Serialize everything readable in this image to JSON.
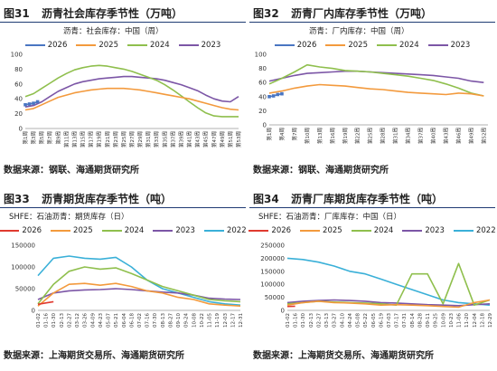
{
  "charts": [
    {
      "number": "图31",
      "title": "沥青社会库存季节性（万吨）",
      "subtitle": "沥青：社会库存：中国（周）",
      "source": "数据来源：钢联、海通期货研究所",
      "chart_data": {
        "type": "line",
        "ylim": [
          0,
          100
        ],
        "yticks": [
          0,
          20,
          40,
          60,
          80,
          100
        ],
        "xticks": [
          "第1周",
          "第3周",
          "第5周",
          "第7周",
          "第9周",
          "第11周",
          "第13周",
          "第15周",
          "第17周",
          "第19周",
          "第21周",
          "第23周",
          "第25周",
          "第27周",
          "第29周",
          "第31周",
          "第33周",
          "第35周",
          "第37周",
          "第39周",
          "第41周",
          "第43周",
          "第45周",
          "第47周",
          "第49周",
          "第51周",
          "第53周"
        ],
        "series": [
          {
            "name": "2026",
            "color": "#4a76c2",
            "marker": true,
            "x": [
              1,
              2,
              3,
              4
            ],
            "values": [
              32,
              33,
              34,
              36
            ]
          },
          {
            "name": "2025",
            "color": "#f39a3d",
            "x": [
              1,
              3,
              5,
              7,
              9,
              11,
              13,
              15,
              17,
              19,
              21,
              23,
              25,
              27,
              29,
              31,
              33,
              35,
              37,
              39,
              41,
              43,
              45,
              47,
              49,
              51,
              53
            ],
            "values": [
              25,
              27,
              32,
              37,
              42,
              45,
              48,
              50,
              52,
              53,
              54,
              54,
              54,
              53,
              52,
              50,
              48,
              46,
              44,
              42,
              40,
              37,
              34,
              31,
              28,
              26,
              25
            ]
          },
          {
            "name": "2024",
            "color": "#8fbf4d",
            "x": [
              1,
              3,
              5,
              7,
              9,
              11,
              13,
              15,
              17,
              19,
              21,
              23,
              25,
              27,
              29,
              31,
              33,
              35,
              37,
              39,
              41,
              43,
              45,
              47,
              49,
              51,
              53
            ],
            "values": [
              43,
              47,
              54,
              61,
              68,
              74,
              79,
              82,
              84,
              85,
              84,
              82,
              80,
              77,
              73,
              69,
              65,
              59,
              52,
              44,
              36,
              28,
              21,
              17,
              16,
              16,
              16
            ]
          },
          {
            "name": "2023",
            "color": "#7c56a6",
            "x": [
              1,
              3,
              5,
              7,
              9,
              11,
              13,
              15,
              17,
              19,
              21,
              23,
              25,
              27,
              29,
              31,
              33,
              35,
              37,
              39,
              41,
              43,
              45,
              47,
              49,
              51,
              53
            ],
            "values": [
              29,
              31,
              36,
              43,
              50,
              55,
              60,
              63,
              65,
              67,
              68,
              69,
              70,
              70,
              69,
              68,
              67,
              65,
              62,
              59,
              55,
              51,
              45,
              40,
              37,
              36,
              43
            ]
          }
        ]
      }
    },
    {
      "number": "图32",
      "title": "沥青厂内库存季节性（万吨）",
      "subtitle": "沥青：厂内库存：中国（周）",
      "source": "数据来源：钢联、海通期货研究所",
      "chart_data": {
        "type": "line",
        "ylim": [
          0,
          100
        ],
        "yticks": [
          0,
          20,
          40,
          60,
          80,
          100
        ],
        "xticks": [
          "第1周",
          "第4周",
          "第7周",
          "第10周",
          "第13周",
          "第16周",
          "第19周",
          "第22周",
          "第25周",
          "第28周",
          "第31周",
          "第34周",
          "第37周",
          "第40周",
          "第43周",
          "第46周",
          "第49周",
          "第52周"
        ],
        "series": [
          {
            "name": "2026",
            "color": "#4a76c2",
            "marker": true,
            "x": [
              1,
              2,
              3,
              4
            ],
            "values": [
              40,
              41,
              43,
              44
            ]
          },
          {
            "name": "2025",
            "color": "#f39a3d",
            "x": [
              1,
              4,
              7,
              10,
              13,
              16,
              19,
              22,
              25,
              28,
              31,
              34,
              37,
              40,
              43,
              46,
              49,
              52
            ],
            "values": [
              45,
              48,
              52,
              55,
              57,
              56,
              55,
              53,
              51,
              50,
              48,
              46,
              45,
              44,
              43,
              45,
              44,
              41
            ]
          },
          {
            "name": "2024",
            "color": "#8fbf4d",
            "x": [
              1,
              4,
              7,
              10,
              13,
              16,
              19,
              22,
              25,
              28,
              31,
              34,
              37,
              40,
              43,
              46,
              49,
              52
            ],
            "values": [
              58,
              66,
              75,
              85,
              82,
              80,
              77,
              76,
              75,
              73,
              71,
              69,
              66,
              63,
              58,
              52,
              45,
              41
            ]
          },
          {
            "name": "2023",
            "color": "#7c56a6",
            "x": [
              1,
              4,
              7,
              10,
              13,
              16,
              19,
              22,
              25,
              28,
              31,
              34,
              37,
              40,
              43,
              46,
              49,
              52
            ],
            "values": [
              62,
              66,
              70,
              73,
              74,
              75,
              76,
              76,
              75,
              74,
              73,
              72,
              71,
              70,
              68,
              66,
              62,
              60
            ]
          }
        ]
      }
    },
    {
      "number": "图33",
      "title": "沥青期货库存季节性（吨）",
      "subtitle": "SHFE：石油沥青：期货库存（日）",
      "source": "数据来源：上海期货交易所、海通期货研究所",
      "chart_data": {
        "type": "line",
        "ylim": [
          0,
          150000
        ],
        "yticks": [
          0,
          50000,
          100000,
          150000
        ],
        "xticks": [
          "01-02",
          "01-16",
          "01-30",
          "02-13",
          "02-27",
          "03-12",
          "03-26",
          "04-09",
          "04-23",
          "05-07",
          "05-21",
          "06-04",
          "06-18",
          "07-02",
          "07-16",
          "07-30",
          "08-13",
          "08-27",
          "09-10",
          "09-24",
          "10-08",
          "10-22",
          "11-05",
          "11-19",
          "12-03",
          "12-17",
          "12-31"
        ],
        "series": [
          {
            "name": "2026",
            "color": "#e03a2f",
            "x": [
              0,
              1,
              2
            ],
            "values": [
              14000,
              17000,
              20000
            ]
          },
          {
            "name": "2025",
            "color": "#f39a3d",
            "x": [
              0,
              2,
              4,
              6,
              8,
              10,
              12,
              14,
              16,
              18,
              20,
              22,
              24,
              26
            ],
            "values": [
              10000,
              40000,
              60000,
              62000,
              58000,
              62000,
              55000,
              45000,
              40000,
              30000,
              25000,
              15000,
              12000,
              10000
            ]
          },
          {
            "name": "2024",
            "color": "#8fbf4d",
            "x": [
              0,
              2,
              4,
              6,
              8,
              10,
              12,
              14,
              16,
              18,
              20,
              22,
              24,
              26
            ],
            "values": [
              15000,
              60000,
              90000,
              100000,
              95000,
              98000,
              85000,
              70000,
              55000,
              45000,
              35000,
              25000,
              22000,
              20000
            ]
          },
          {
            "name": "2023",
            "color": "#7c56a6",
            "x": [
              0,
              2,
              4,
              6,
              8,
              10,
              12,
              14,
              16,
              18,
              20,
              22,
              24,
              26
            ],
            "values": [
              25000,
              40000,
              45000,
              47000,
              48000,
              50000,
              48000,
              45000,
              42000,
              40000,
              35000,
              28000,
              26000,
              25000
            ]
          },
          {
            "name": "2022",
            "color": "#3ab0d8",
            "x": [
              0,
              2,
              4,
              6,
              8,
              10,
              12,
              14,
              16,
              18,
              20,
              22,
              24,
              26
            ],
            "values": [
              80000,
              120000,
              125000,
              120000,
              118000,
              122000,
              100000,
              70000,
              50000,
              40000,
              30000,
              20000,
              15000,
              12000
            ]
          }
        ]
      }
    },
    {
      "number": "图34",
      "title": "沥青厂库期货库存季节性（吨）",
      "subtitle": "SHFE：石油沥青：厂库库存：中国（日）",
      "source": "数据来源：上海期货交易所、海通期货研究所",
      "chart_data": {
        "type": "line",
        "ylim": [
          0,
          250000
        ],
        "yticks": [
          0,
          50000,
          100000,
          150000,
          200000,
          250000
        ],
        "xticks": [
          "01-02",
          "01-16",
          "01-30",
          "02-13",
          "02-27",
          "03-13",
          "03-27",
          "04-10",
          "04-24",
          "05-08",
          "05-22",
          "06-05",
          "06-19",
          "07-03",
          "07-17",
          "07-31",
          "08-14",
          "08-28",
          "09-11",
          "09-25",
          "10-09",
          "10-23",
          "11-06",
          "11-20",
          "12-04",
          "12-18",
          "12-29"
        ],
        "series": [
          {
            "name": "2026",
            "color": "#e03a2f",
            "x": [
              0,
              1
            ],
            "values": [
              15000,
              16000
            ]
          },
          {
            "name": "2025",
            "color": "#f39a3d",
            "x": [
              0,
              2,
              4,
              6,
              8,
              10,
              12,
              14,
              16,
              18,
              20,
              22,
              24,
              26
            ],
            "values": [
              20000,
              30000,
              35000,
              30000,
              28000,
              25000,
              20000,
              22000,
              20000,
              18000,
              15000,
              12000,
              30000,
              40000
            ]
          },
          {
            "name": "2024",
            "color": "#8fbf4d",
            "x": [
              0,
              2,
              4,
              6,
              8,
              10,
              12,
              14,
              16,
              18,
              20,
              22,
              24,
              26
            ],
            "values": [
              25000,
              30000,
              35000,
              32000,
              30000,
              28000,
              25000,
              20000,
              140000,
              140000,
              25000,
              180000,
              20000,
              40000
            ]
          },
          {
            "name": "2023",
            "color": "#7c56a6",
            "x": [
              0,
              2,
              4,
              6,
              8,
              10,
              12,
              14,
              16,
              18,
              20,
              22,
              24,
              26
            ],
            "values": [
              30000,
              35000,
              38000,
              40000,
              38000,
              35000,
              30000,
              28000,
              25000,
              22000,
              20000,
              18000,
              22000,
              25000
            ]
          },
          {
            "name": "2022",
            "color": "#3ab0d8",
            "x": [
              0,
              2,
              4,
              6,
              8,
              10,
              12,
              14,
              16,
              18,
              20,
              22,
              24,
              26
            ],
            "values": [
              200000,
              195000,
              185000,
              170000,
              150000,
              140000,
              120000,
              100000,
              80000,
              60000,
              40000,
              30000,
              25000,
              20000
            ]
          }
        ]
      }
    }
  ]
}
